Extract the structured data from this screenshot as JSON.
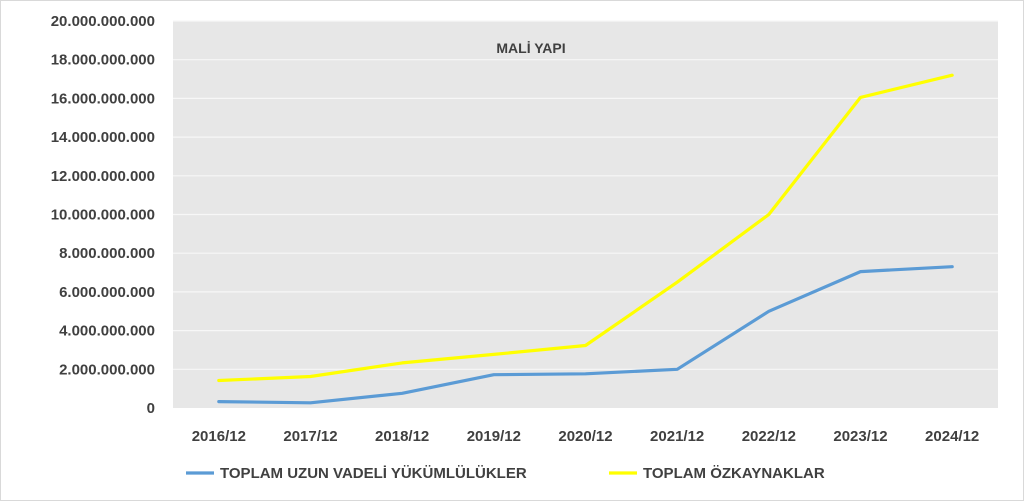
{
  "chart_data": {
    "type": "line",
    "title": "MALİ YAPI",
    "categories": [
      "2016/12",
      "2017/12",
      "2018/12",
      "2019/12",
      "2020/12",
      "2021/12",
      "2022/12",
      "2023/12",
      "2024/12"
    ],
    "ylim": [
      0,
      20000000000
    ],
    "y_ticks": [
      "0",
      "2.000.000.000",
      "4.000.000.000",
      "6.000.000.000",
      "8.000.000.000",
      "10.000.000.000",
      "12.000.000.000",
      "14.000.000.000",
      "16.000.000.000",
      "18.000.000.000",
      "20.000.000.000"
    ],
    "y_tick_values": [
      0,
      2000000000,
      4000000000,
      6000000000,
      8000000000,
      10000000000,
      12000000000,
      14000000000,
      16000000000,
      18000000000,
      20000000000
    ],
    "grid": true,
    "plot_background": "#e7e7e7",
    "legend_position": "bottom",
    "series": [
      {
        "name": "TOPLAM UZUN VADELİ YÜKÜMLÜLÜKLER",
        "color": "#5b9bd5",
        "values": [
          330000000,
          270000000,
          760000000,
          1720000000,
          1770000000,
          2000000000,
          5000000000,
          7050000000,
          7300000000
        ]
      },
      {
        "name": "TOPLAM ÖZKAYNAKLAR",
        "color": "#ffff00",
        "values": [
          1420000000,
          1630000000,
          2330000000,
          2770000000,
          3230000000,
          6500000000,
          10000000000,
          16050000000,
          17200000000
        ]
      }
    ]
  }
}
